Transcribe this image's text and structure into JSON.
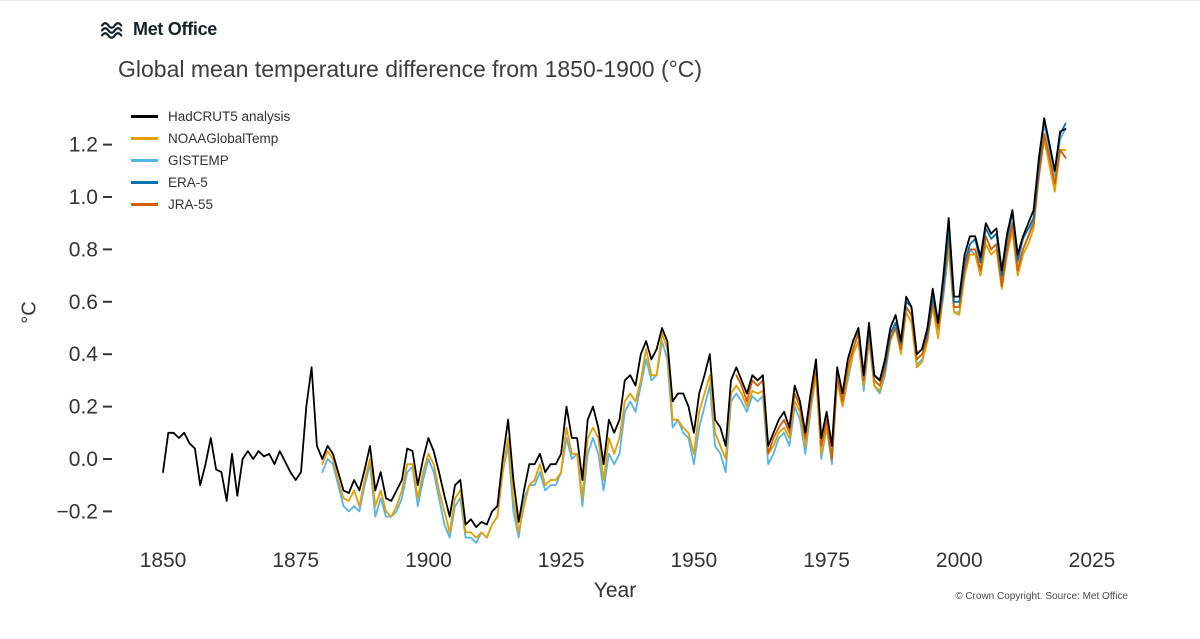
{
  "header": {
    "logo_text": "Met Office"
  },
  "footer": {
    "copyright": "© Crown Copyright. Source: Met Office"
  },
  "chart_data": {
    "type": "line",
    "title": "Global mean temperature difference from 1850-1900 (°C)",
    "xlabel": "Year",
    "ylabel": "°C",
    "xlim": [
      1845,
      2030
    ],
    "ylim": [
      -0.35,
      1.35
    ],
    "grid": false,
    "legend_position": "top-left",
    "xticks": [
      1850,
      1875,
      1900,
      1925,
      1950,
      1975,
      2000,
      2025
    ],
    "ytick_values": [
      -0.2,
      0.0,
      0.2,
      0.4,
      0.6,
      0.8,
      1.0,
      1.2
    ],
    "ytick_labels": [
      "−0.2",
      "0.0",
      "0.2",
      "0.4",
      "0.6",
      "0.8",
      "1.0",
      "1.2"
    ],
    "series": [
      {
        "name": "HadCRUT5 analysis",
        "color": "#000000",
        "start_year": 1850,
        "values": [
          -0.05,
          0.1,
          0.1,
          0.08,
          0.1,
          0.06,
          0.04,
          -0.1,
          -0.02,
          0.08,
          -0.04,
          -0.05,
          -0.16,
          0.02,
          -0.14,
          0.0,
          0.03,
          0.0,
          0.03,
          0.01,
          0.02,
          -0.02,
          0.03,
          -0.01,
          -0.05,
          -0.08,
          -0.05,
          0.2,
          0.35,
          0.05,
          0.0,
          0.05,
          0.02,
          -0.05,
          -0.12,
          -0.13,
          -0.08,
          -0.12,
          -0.04,
          0.05,
          -0.12,
          -0.05,
          -0.15,
          -0.16,
          -0.12,
          -0.08,
          0.04,
          0.03,
          -0.1,
          0.0,
          0.08,
          0.03,
          -0.05,
          -0.14,
          -0.22,
          -0.1,
          -0.08,
          -0.25,
          -0.23,
          -0.26,
          -0.24,
          -0.25,
          -0.2,
          -0.18,
          0.0,
          0.15,
          -0.08,
          -0.24,
          -0.12,
          -0.02,
          -0.02,
          0.02,
          -0.05,
          -0.02,
          -0.02,
          0.02,
          0.2,
          0.08,
          0.08,
          -0.08,
          0.15,
          0.2,
          0.12,
          -0.02,
          0.15,
          0.1,
          0.15,
          0.3,
          0.32,
          0.28,
          0.4,
          0.45,
          0.38,
          0.42,
          0.5,
          0.45,
          0.22,
          0.25,
          0.25,
          0.2,
          0.1,
          0.25,
          0.32,
          0.4,
          0.15,
          0.12,
          0.05,
          0.3,
          0.35,
          0.3,
          0.25,
          0.32,
          0.3,
          0.32,
          0.05,
          0.1,
          0.15,
          0.18,
          0.12,
          0.28,
          0.22,
          0.1,
          0.25,
          0.38,
          0.08,
          0.18,
          0.05,
          0.35,
          0.25,
          0.38,
          0.45,
          0.5,
          0.32,
          0.52,
          0.32,
          0.3,
          0.38,
          0.5,
          0.55,
          0.45,
          0.62,
          0.58,
          0.4,
          0.42,
          0.5,
          0.65,
          0.52,
          0.7,
          0.92,
          0.62,
          0.62,
          0.78,
          0.85,
          0.85,
          0.77,
          0.9,
          0.86,
          0.88,
          0.72,
          0.86,
          0.95,
          0.78,
          0.85,
          0.9,
          0.95,
          1.15,
          1.3,
          1.2,
          1.1,
          1.25,
          1.26
        ]
      },
      {
        "name": "NOAAGlobalTemp",
        "color": "#E69F00",
        "start_year": 1880,
        "values": [
          -0.02,
          0.03,
          0.0,
          -0.08,
          -0.15,
          -0.16,
          -0.12,
          -0.18,
          -0.08,
          0.0,
          -0.18,
          -0.12,
          -0.2,
          -0.22,
          -0.18,
          -0.12,
          -0.02,
          -0.02,
          -0.15,
          -0.05,
          0.02,
          -0.02,
          -0.12,
          -0.2,
          -0.28,
          -0.15,
          -0.12,
          -0.28,
          -0.28,
          -0.3,
          -0.28,
          -0.3,
          -0.25,
          -0.22,
          -0.05,
          0.08,
          -0.15,
          -0.28,
          -0.18,
          -0.1,
          -0.08,
          -0.02,
          -0.1,
          -0.08,
          -0.08,
          -0.05,
          0.12,
          0.02,
          0.02,
          -0.15,
          0.08,
          0.12,
          0.08,
          -0.08,
          0.08,
          0.02,
          0.08,
          0.22,
          0.25,
          0.22,
          0.3,
          0.42,
          0.32,
          0.32,
          0.48,
          0.42,
          0.15,
          0.15,
          0.12,
          0.1,
          0.02,
          0.18,
          0.25,
          0.32,
          0.1,
          0.05,
          0.0,
          0.25,
          0.28,
          0.25,
          0.2,
          0.26,
          0.25,
          0.26,
          0.02,
          0.05,
          0.1,
          0.12,
          0.08,
          0.22,
          0.18,
          0.05,
          0.2,
          0.32,
          0.02,
          0.12,
          0.0,
          0.3,
          0.2,
          0.32,
          0.4,
          0.45,
          0.28,
          0.46,
          0.28,
          0.26,
          0.34,
          0.45,
          0.5,
          0.4,
          0.56,
          0.52,
          0.35,
          0.37,
          0.45,
          0.58,
          0.46,
          0.64,
          0.82,
          0.56,
          0.55,
          0.7,
          0.78,
          0.78,
          0.7,
          0.82,
          0.78,
          0.8,
          0.65,
          0.78,
          0.87,
          0.7,
          0.78,
          0.82,
          0.88,
          1.08,
          1.22,
          1.12,
          1.02,
          1.18,
          1.18
        ]
      },
      {
        "name": "GISTEMP",
        "color": "#56B4E9",
        "start_year": 1880,
        "values": [
          -0.05,
          0.0,
          -0.02,
          -0.1,
          -0.18,
          -0.2,
          -0.18,
          -0.2,
          -0.1,
          -0.02,
          -0.22,
          -0.15,
          -0.22,
          -0.22,
          -0.2,
          -0.15,
          -0.05,
          -0.03,
          -0.18,
          -0.08,
          0.0,
          -0.05,
          -0.15,
          -0.25,
          -0.3,
          -0.18,
          -0.15,
          -0.3,
          -0.3,
          -0.32,
          -0.28,
          -0.3,
          -0.25,
          -0.22,
          -0.05,
          0.05,
          -0.2,
          -0.3,
          -0.15,
          -0.1,
          -0.1,
          -0.05,
          -0.12,
          -0.1,
          -0.1,
          -0.05,
          0.08,
          0.0,
          0.02,
          -0.18,
          0.02,
          0.08,
          0.02,
          -0.12,
          0.02,
          -0.02,
          0.02,
          0.18,
          0.22,
          0.18,
          0.28,
          0.38,
          0.3,
          0.32,
          0.45,
          0.38,
          0.12,
          0.15,
          0.1,
          0.08,
          -0.02,
          0.12,
          0.2,
          0.28,
          0.05,
          0.02,
          -0.05,
          0.22,
          0.25,
          0.22,
          0.18,
          0.24,
          0.22,
          0.24,
          -0.02,
          0.02,
          0.08,
          0.1,
          0.05,
          0.2,
          0.15,
          0.02,
          0.18,
          0.32,
          0.0,
          0.12,
          -0.02,
          0.3,
          0.2,
          0.3,
          0.4,
          0.45,
          0.26,
          0.45,
          0.28,
          0.25,
          0.32,
          0.45,
          0.52,
          0.42,
          0.58,
          0.55,
          0.36,
          0.38,
          0.45,
          0.6,
          0.48,
          0.62,
          0.8,
          0.56,
          0.56,
          0.7,
          0.8,
          0.78,
          0.7,
          0.85,
          0.8,
          0.82,
          0.68,
          0.82,
          0.9,
          0.75,
          0.8,
          0.85,
          0.92,
          1.1,
          1.28,
          1.18,
          1.08,
          1.22,
          1.26
        ]
      },
      {
        "name": "ERA-5",
        "color": "#0072B2",
        "start_year": 1979,
        "values": [
          0.38,
          0.45,
          0.5,
          0.32,
          0.5,
          0.32,
          0.3,
          0.36,
          0.48,
          0.52,
          0.44,
          0.6,
          0.58,
          0.4,
          0.42,
          0.48,
          0.62,
          0.52,
          0.66,
          0.88,
          0.6,
          0.6,
          0.75,
          0.82,
          0.84,
          0.75,
          0.88,
          0.84,
          0.86,
          0.7,
          0.84,
          0.94,
          0.76,
          0.84,
          0.88,
          0.92,
          1.12,
          1.3,
          1.2,
          1.1,
          1.24,
          1.28
        ]
      },
      {
        "name": "JRA-55",
        "color": "#D55E00",
        "start_year": 1958,
        "values": [
          0.32,
          0.28,
          0.22,
          0.3,
          0.28,
          0.3,
          0.02,
          0.08,
          0.12,
          0.15,
          0.1,
          0.25,
          0.2,
          0.08,
          0.22,
          0.35,
          0.05,
          0.15,
          0.0,
          0.32,
          0.22,
          0.35,
          0.42,
          0.48,
          0.3,
          0.48,
          0.3,
          0.28,
          0.34,
          0.46,
          0.5,
          0.42,
          0.58,
          0.55,
          0.38,
          0.4,
          0.46,
          0.6,
          0.5,
          0.64,
          0.85,
          0.58,
          0.58,
          0.72,
          0.8,
          0.8,
          0.72,
          0.85,
          0.8,
          0.82,
          0.66,
          0.8,
          0.9,
          0.72,
          0.8,
          0.85,
          0.9,
          1.08,
          1.24,
          1.15,
          1.05,
          1.18,
          1.15
        ]
      }
    ]
  }
}
